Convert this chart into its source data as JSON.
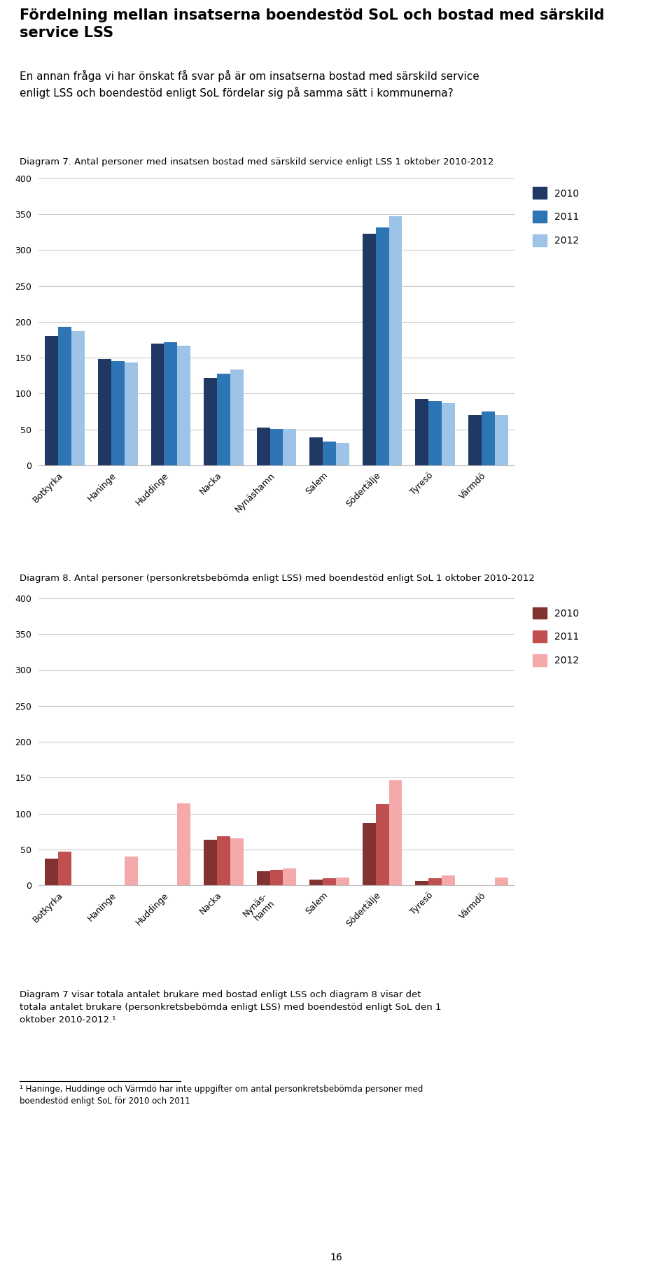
{
  "title_main": "Fördelning mellan insatserna boendestöd SoL och bostad med särskild\nservice LSS",
  "intro_text": "En annan fråga vi har önskat få svar på är om insatserna bostad med särskild service\nenligt LSS och boendestöd enligt SoL fördelar sig på samma sätt i kommunerna?",
  "chart1_title": "Diagram 7. Antal personer med insatsen bostad med särskild service enligt LSS 1 oktober 2010-2012",
  "chart2_title": "Diagram 8. Antal personer (personkretsbebömda enligt LSS) med boendestöd enligt SoL 1 oktober 2010-2012",
  "categories1": [
    "Botkyrka",
    "Haninge",
    "Huddinge",
    "Nacka",
    "Nynäshamn",
    "Salem",
    "Södertälje",
    "Tyresö",
    "Värmdö"
  ],
  "categories2": [
    "Botkyrka",
    "Haninge",
    "Huddinge",
    "Nacka",
    "Nynäs-\nhamn",
    "Salem",
    "Södertälje",
    "Tyresö",
    "Värmdö"
  ],
  "chart1_2010": [
    180,
    148,
    170,
    122,
    53,
    39,
    323,
    93,
    70
  ],
  "chart1_2011": [
    193,
    145,
    172,
    128,
    51,
    33,
    332,
    90,
    75
  ],
  "chart1_2012": [
    187,
    143,
    167,
    134,
    51,
    31,
    347,
    87,
    70
  ],
  "chart2_2010": [
    37,
    0,
    0,
    63,
    20,
    8,
    87,
    6,
    0
  ],
  "chart2_2011": [
    47,
    0,
    0,
    68,
    21,
    10,
    113,
    10,
    0
  ],
  "chart2_2012": [
    0,
    40,
    114,
    65,
    23,
    11,
    146,
    14,
    11
  ],
  "color1_2010": "#1F3864",
  "color1_2011": "#2E75B6",
  "color1_2012": "#9DC3E6",
  "color2_2010": "#833232",
  "color2_2011": "#C05050",
  "color2_2012": "#F4AAAA",
  "ylim1": [
    0,
    400
  ],
  "ylim2": [
    0,
    400
  ],
  "yticks": [
    0,
    50,
    100,
    150,
    200,
    250,
    300,
    350,
    400
  ],
  "legend_years": [
    "2010",
    "2011",
    "2012"
  ],
  "footnote": "Diagram 7 visar totala antalet brukare med bostad enligt LSS och diagram 8 visar det\ntotala antalet brukare (personkretsbebömda enligt LSS) med boendestöd enligt SoL den 1\noktober 2010-2012.¹",
  "footnote2": "¹ Haninge, Huddinge och Värmdö har inte uppgifter om antal personkretsbebömda personer med\nboendestöd enligt SoL för 2010 och 2011",
  "page_num": "16"
}
